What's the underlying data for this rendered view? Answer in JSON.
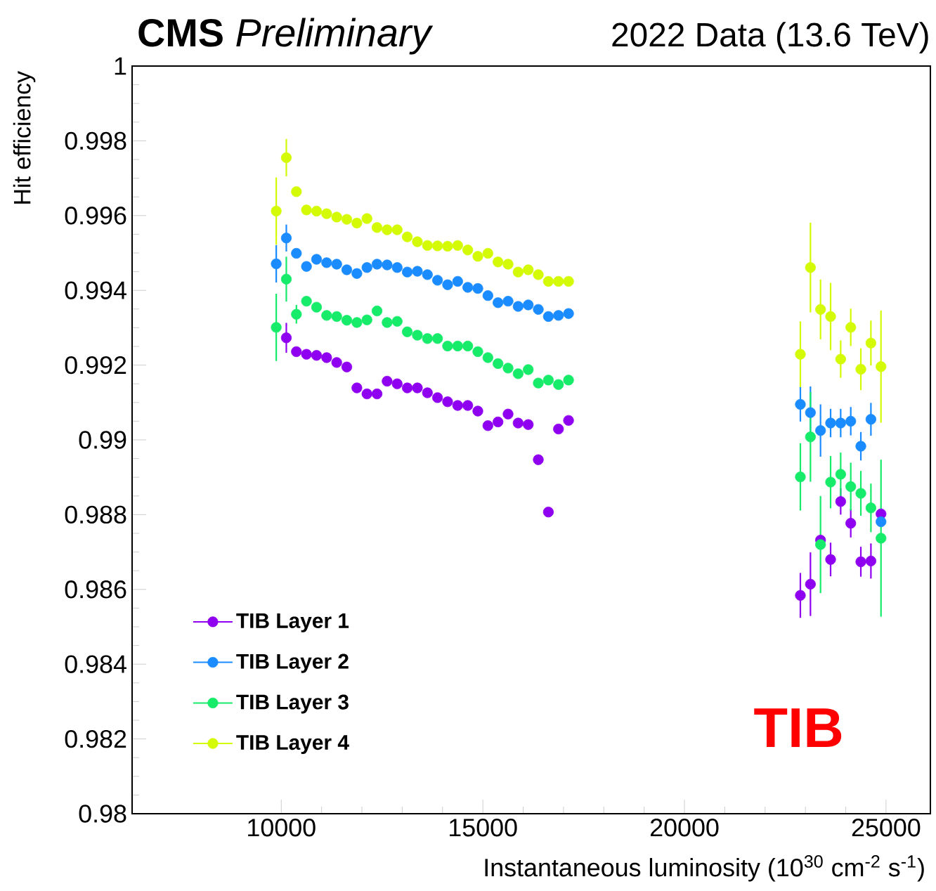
{
  "chart_data": {
    "type": "scatter",
    "title": "**CMS** *Preliminary*",
    "subtitle": "2022 Data (13.6 TeV)",
    "xlabel": "Instantaneous luminosity (10$^{30}$ cm$^{-2}$ s$^{-1}$)",
    "ylabel": "Hit efficiency",
    "annotations": [
      "TIB"
    ],
    "x": [
      9875,
      10125,
      10375,
      10625,
      10875,
      11125,
      11375,
      11625,
      11875,
      12125,
      12375,
      12625,
      12875,
      13125,
      13375,
      13625,
      13875,
      14125,
      14375,
      14625,
      14875,
      15125,
      15375,
      15625,
      15875,
      16125,
      16375,
      16625,
      16875,
      17125,
      22875,
      23125,
      23375,
      23625,
      23875,
      24125,
      24375,
      24625,
      24875
    ],
    "xlim": [
      6300,
      26100
    ],
    "xticks": [
      10000,
      15000,
      20000,
      25000
    ],
    "ylim": [
      0.98,
      1
    ],
    "yticks": [
      0.98,
      0.982,
      0.984,
      0.986,
      0.988,
      0.99,
      0.992,
      0.994,
      0.996,
      0.998,
      1
    ],
    "marker": "circle",
    "legend": "bottom left",
    "series": [
      {
        "name": "TIB Layer 1",
        "color": "#8f00f0",
        "values": [
          null,
          0.99273,
          0.99236,
          0.99229,
          0.99226,
          0.9922,
          0.99207,
          0.99195,
          0.99139,
          0.99123,
          0.99123,
          0.99157,
          0.9915,
          0.99139,
          0.99139,
          0.99126,
          0.99113,
          0.99102,
          0.99092,
          0.99092,
          0.99077,
          0.99038,
          0.99048,
          0.99069,
          0.99045,
          0.99041,
          0.98947,
          0.98807,
          0.99029,
          0.99052,
          0.98584,
          0.98614,
          0.98732,
          0.9868,
          0.98835,
          0.98777,
          0.98674,
          0.98676,
          0.98802
        ],
        "errors": [
          null,
          0.0004,
          null,
          null,
          null,
          null,
          null,
          null,
          null,
          null,
          null,
          null,
          null,
          null,
          null,
          null,
          null,
          null,
          null,
          null,
          null,
          null,
          null,
          null,
          null,
          null,
          null,
          null,
          null,
          null,
          0.0006,
          0.00085,
          null,
          0.00045,
          0.00035,
          0.00038,
          0.0004,
          0.00047,
          null
        ]
      },
      {
        "name": "TIB Layer 2",
        "color": "#1a8cff",
        "values": [
          0.99471,
          0.9954,
          0.99499,
          0.99464,
          0.99483,
          0.99474,
          0.9947,
          0.99455,
          0.99445,
          0.99461,
          0.9947,
          0.99468,
          0.99461,
          0.99449,
          0.99451,
          0.99442,
          0.99427,
          0.99415,
          0.99424,
          0.99408,
          0.99405,
          0.99386,
          0.99367,
          0.99371,
          0.99357,
          0.99361,
          0.99349,
          0.9933,
          0.99333,
          0.99338,
          0.99095,
          0.99073,
          0.99025,
          0.99045,
          0.99045,
          0.9905,
          0.98983,
          0.99055,
          0.98781
        ],
        "errors": [
          0.0005,
          0.00036,
          null,
          null,
          null,
          null,
          null,
          null,
          null,
          null,
          null,
          null,
          null,
          null,
          null,
          null,
          null,
          null,
          null,
          null,
          null,
          null,
          null,
          null,
          null,
          null,
          null,
          null,
          null,
          null,
          0.00046,
          0.0007,
          0.0007,
          0.00038,
          0.00038,
          0.00038,
          0.00038,
          0.00044,
          null
        ]
      },
      {
        "name": "TIB Layer 3",
        "color": "#17eb6a",
        "values": [
          0.99301,
          0.9943,
          0.99336,
          0.99371,
          0.99355,
          0.99333,
          0.9933,
          0.9932,
          0.99314,
          0.99321,
          0.99345,
          0.99314,
          0.99317,
          0.99289,
          0.9928,
          0.99271,
          0.99271,
          0.99251,
          0.99251,
          0.99251,
          0.99236,
          0.9922,
          0.99204,
          0.99192,
          0.99177,
          0.99188,
          0.99152,
          0.9916,
          0.99148,
          0.9916,
          0.98901,
          0.99008,
          0.9872,
          0.98887,
          0.98908,
          0.98875,
          0.98857,
          0.98818,
          0.98737
        ],
        "errors": [
          0.0009,
          0.0006,
          0.00025,
          null,
          null,
          null,
          null,
          null,
          null,
          null,
          null,
          null,
          null,
          null,
          null,
          null,
          null,
          null,
          null,
          null,
          null,
          null,
          null,
          null,
          null,
          null,
          null,
          null,
          null,
          null,
          0.0009,
          0.0012,
          0.0013,
          0.0007,
          0.00058,
          0.00064,
          0.0006,
          0.00065,
          0.0021
        ]
      },
      {
        "name": "TIB Layer 4",
        "color": "#d4fa05",
        "values": [
          0.99612,
          0.99755,
          0.99664,
          0.99615,
          0.99612,
          0.99605,
          0.99596,
          0.9959,
          0.9958,
          0.99592,
          0.99568,
          0.99562,
          0.99562,
          0.99543,
          0.9953,
          0.9952,
          0.99519,
          0.99518,
          0.9952,
          0.99508,
          0.99491,
          0.99499,
          0.99476,
          0.9947,
          0.99449,
          0.99455,
          0.99442,
          0.99424,
          0.99424,
          0.99424,
          0.99229,
          0.99461,
          0.99349,
          0.9933,
          0.99216,
          0.99301,
          0.99189,
          0.99259,
          0.99196
        ],
        "errors": [
          0.0009,
          0.0005,
          null,
          null,
          null,
          null,
          null,
          null,
          null,
          null,
          null,
          null,
          null,
          null,
          null,
          null,
          null,
          null,
          null,
          null,
          null,
          null,
          null,
          null,
          null,
          null,
          null,
          null,
          null,
          null,
          0.00088,
          0.0012,
          0.0008,
          0.0009,
          0.0005,
          0.0005,
          0.00056,
          0.0006,
          0.0015
        ]
      }
    ]
  }
}
